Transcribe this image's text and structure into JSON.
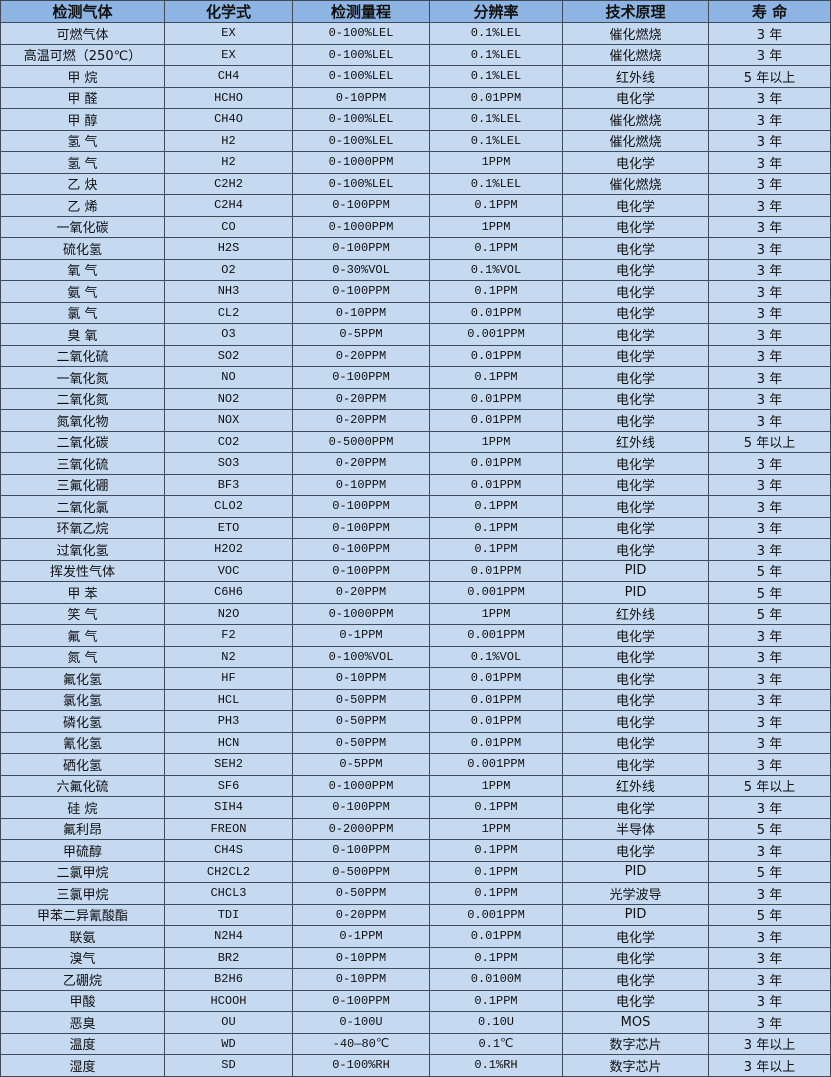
{
  "colors": {
    "header_bg": "#8db4e2",
    "row_bg": "#c5d9f1",
    "border": "#3f4a5a"
  },
  "table": {
    "headers": [
      "检测气体",
      "化学式",
      "检测量程",
      "分辨率",
      "技术原理",
      "寿 命"
    ],
    "rows": [
      [
        "可燃气体",
        "EX",
        "0-100%LEL",
        "0.1%LEL",
        "催化燃烧",
        "3 年"
      ],
      [
        "高温可燃（250℃）",
        "EX",
        "0-100%LEL",
        "0.1%LEL",
        "催化燃烧",
        "3 年"
      ],
      [
        "甲 烷",
        "CH4",
        "0-100%LEL",
        "0.1%LEL",
        "红外线",
        "5 年以上"
      ],
      [
        "甲 醛",
        "HCHO",
        "0-10PPM",
        "0.01PPM",
        "电化学",
        "3 年"
      ],
      [
        "甲 醇",
        "CH4O",
        "0-100%LEL",
        "0.1%LEL",
        "催化燃烧",
        "3 年"
      ],
      [
        "氢 气",
        "H2",
        "0-100%LEL",
        "0.1%LEL",
        "催化燃烧",
        "3 年"
      ],
      [
        "氢 气",
        "H2",
        "0-1000PPM",
        "1PPM",
        "电化学",
        "3 年"
      ],
      [
        "乙 炔",
        "C2H2",
        "0-100%LEL",
        "0.1%LEL",
        "催化燃烧",
        "3 年"
      ],
      [
        "乙 烯",
        "C2H4",
        "0-100PPM",
        "0.1PPM",
        "电化学",
        "3 年"
      ],
      [
        "一氧化碳",
        "CO",
        "0-1000PPM",
        "1PPM",
        "电化学",
        "3 年"
      ],
      [
        "硫化氢",
        "H2S",
        "0-100PPM",
        "0.1PPM",
        "电化学",
        "3 年"
      ],
      [
        "氧 气",
        "O2",
        "0-30%VOL",
        "0.1%VOL",
        "电化学",
        "3 年"
      ],
      [
        "氨 气",
        "NH3",
        "0-100PPM",
        "0.1PPM",
        "电化学",
        "3 年"
      ],
      [
        "氯 气",
        "CL2",
        "0-10PPM",
        "0.01PPM",
        "电化学",
        "3 年"
      ],
      [
        "臭 氧",
        "O3",
        "0-5PPM",
        "0.001PPM",
        "电化学",
        "3 年"
      ],
      [
        "二氧化硫",
        "SO2",
        "0-20PPM",
        "0.01PPM",
        "电化学",
        "3 年"
      ],
      [
        "一氧化氮",
        "NO",
        "0-100PPM",
        "0.1PPM",
        "电化学",
        "3 年"
      ],
      [
        "二氧化氮",
        "NO2",
        "0-20PPM",
        "0.01PPM",
        "电化学",
        "3 年"
      ],
      [
        "氮氧化物",
        "NOX",
        "0-20PPM",
        "0.01PPM",
        "电化学",
        "3 年"
      ],
      [
        "二氧化碳",
        "CO2",
        "0-5000PPM",
        "1PPM",
        "红外线",
        "5 年以上"
      ],
      [
        "三氧化硫",
        "SO3",
        "0-20PPM",
        "0.01PPM",
        "电化学",
        "3 年"
      ],
      [
        "三氟化硼",
        "BF3",
        "0-10PPM",
        "0.01PPM",
        "电化学",
        "3 年"
      ],
      [
        "二氧化氯",
        "CLO2",
        "0-100PPM",
        "0.1PPM",
        "电化学",
        "3 年"
      ],
      [
        "环氧乙烷",
        "ETO",
        "0-100PPM",
        "0.1PPM",
        "电化学",
        "3 年"
      ],
      [
        "过氧化氢",
        "H2O2",
        "0-100PPM",
        "0.1PPM",
        "电化学",
        "3 年"
      ],
      [
        "挥发性气体",
        "VOC",
        "0-100PPM",
        "0.01PPM",
        "PID",
        "5 年"
      ],
      [
        "甲 苯",
        "C6H6",
        "0-20PPM",
        "0.001PPM",
        "PID",
        "5 年"
      ],
      [
        "笑 气",
        "N2O",
        "0-1000PPM",
        "1PPM",
        "红外线",
        "5 年"
      ],
      [
        "氟 气",
        "F2",
        "0-1PPM",
        "0.001PPM",
        "电化学",
        "3 年"
      ],
      [
        "氮 气",
        "N2",
        "0-100%VOL",
        "0.1%VOL",
        "电化学",
        "3 年"
      ],
      [
        "氟化氢",
        "HF",
        "0-10PPM",
        "0.01PPM",
        "电化学",
        "3 年"
      ],
      [
        "氯化氢",
        "HCL",
        "0-50PPM",
        "0.01PPM",
        "电化学",
        "3 年"
      ],
      [
        "磷化氢",
        "PH3",
        "0-50PPM",
        "0.01PPM",
        "电化学",
        "3 年"
      ],
      [
        "氰化氢",
        "HCN",
        "0-50PPM",
        "0.01PPM",
        "电化学",
        "3 年"
      ],
      [
        "硒化氢",
        "SEH2",
        "0-5PPM",
        "0.001PPM",
        "电化学",
        "3 年"
      ],
      [
        "六氟化硫",
        "SF6",
        "0-1000PPM",
        "1PPM",
        "红外线",
        "5 年以上"
      ],
      [
        "硅 烷",
        "SIH4",
        "0-100PPM",
        "0.1PPM",
        "电化学",
        "3 年"
      ],
      [
        "氟利昂",
        "FREON",
        "0-2000PPM",
        "1PPM",
        "半导体",
        "5 年"
      ],
      [
        "甲硫醇",
        "CH4S",
        "0-100PPM",
        "0.1PPM",
        "电化学",
        "3 年"
      ],
      [
        "二氯甲烷",
        "CH2CL2",
        "0-500PPM",
        "0.1PPM",
        "PID",
        "5 年"
      ],
      [
        "三氯甲烷",
        "CHCL3",
        "0-50PPM",
        "0.1PPM",
        "光学波导",
        "3 年"
      ],
      [
        "甲苯二异氰酸酯",
        "TDI",
        "0-20PPM",
        "0.001PPM",
        "PID",
        "5 年"
      ],
      [
        "联氨",
        "N2H4",
        "0-1PPM",
        "0.01PPM",
        "电化学",
        "3 年"
      ],
      [
        "溴气",
        "BR2",
        "0-10PPM",
        "0.1PPM",
        "电化学",
        "3 年"
      ],
      [
        "乙硼烷",
        "B2H6",
        "0-10PPM",
        "0.0100M",
        "电化学",
        "3 年"
      ],
      [
        "甲酸",
        "HCOOH",
        "0-100PPM",
        "0.1PPM",
        "电化学",
        "3 年"
      ],
      [
        "恶臭",
        "OU",
        "0-100U",
        "0.10U",
        "MOS",
        "3 年"
      ],
      [
        "温度",
        "WD",
        "-40—80℃",
        "0.1℃",
        "数字芯片",
        "3 年以上"
      ],
      [
        "湿度",
        "SD",
        "0-100%RH",
        "0.1%RH",
        "数字芯片",
        "3 年以上"
      ]
    ]
  }
}
